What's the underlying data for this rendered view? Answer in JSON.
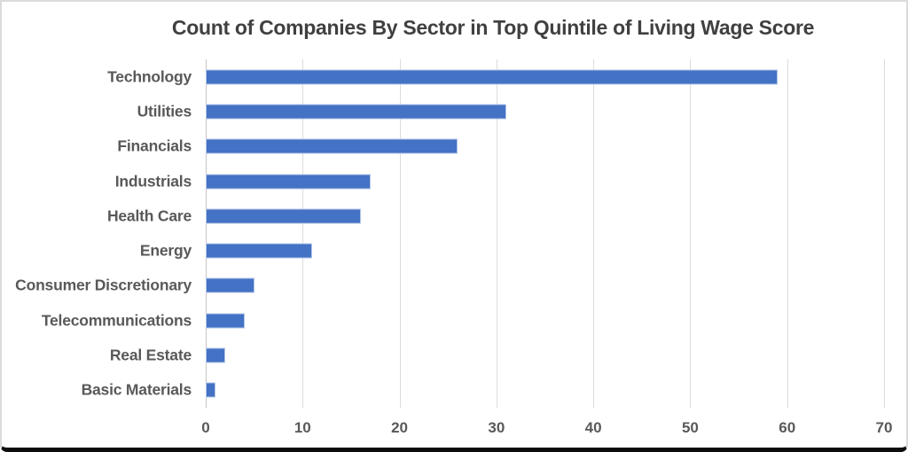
{
  "frame": {
    "background": "#ffffff",
    "border_color": "#dbdbdb",
    "bottom_edge_color": "#0d0d0d"
  },
  "chart_data": {
    "type": "bar",
    "orientation": "horizontal",
    "title": "Count of Companies By Sector in Top Quintile of Living Wage Score",
    "categories": [
      "Technology",
      "Utilities",
      "Financials",
      "Industrials",
      "Health Care",
      "Energy",
      "Consumer Discretionary",
      "Telecommunications",
      "Real Estate",
      "Basic Materials"
    ],
    "values": [
      59,
      31,
      26,
      17,
      16,
      11,
      5,
      4,
      2,
      1
    ],
    "xlabel": "",
    "ylabel": "",
    "xlim": [
      0,
      70
    ],
    "x_ticks": [
      0,
      10,
      20,
      30,
      40,
      50,
      60,
      70
    ],
    "grid": "vertical-only",
    "legend": "none",
    "bar_color": "#4472c4",
    "bar_border_color": "#b4c7e7",
    "gridline_color": "#dcdcdc",
    "title_color": "#404040",
    "label_color": "#595959"
  }
}
